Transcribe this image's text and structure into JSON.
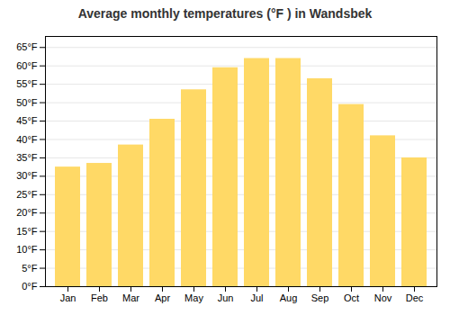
{
  "chart_data": {
    "type": "bar",
    "title": "Average monthly temperatures (°F ) in Wandsbek",
    "categories": [
      "Jan",
      "Feb",
      "Mar",
      "Apr",
      "May",
      "Jun",
      "Jul",
      "Aug",
      "Sep",
      "Oct",
      "Nov",
      "Dec"
    ],
    "values": [
      32.5,
      33.5,
      38.5,
      45.5,
      53.5,
      59.5,
      62.0,
      62.0,
      56.5,
      49.5,
      41.0,
      35.0
    ],
    "color": "#FFD966",
    "ylim": [
      0,
      68
    ],
    "yticks": [
      {
        "value": 0,
        "label": "0°F"
      },
      {
        "value": 5,
        "label": "5°F"
      },
      {
        "value": 10,
        "label": "10°F"
      },
      {
        "value": 15,
        "label": "15°F"
      },
      {
        "value": 20,
        "label": "20°F"
      },
      {
        "value": 25,
        "label": "25°F"
      },
      {
        "value": 30,
        "label": "30°F"
      },
      {
        "value": 35,
        "label": "35°F"
      },
      {
        "value": 40,
        "label": "40°F"
      },
      {
        "value": 45,
        "label": "45°F"
      },
      {
        "value": 50,
        "label": "50°F"
      },
      {
        "value": 55,
        "label": "55°F"
      },
      {
        "value": 60,
        "label": "60°F"
      },
      {
        "value": 65,
        "label": "65°F"
      }
    ],
    "grid": true
  }
}
